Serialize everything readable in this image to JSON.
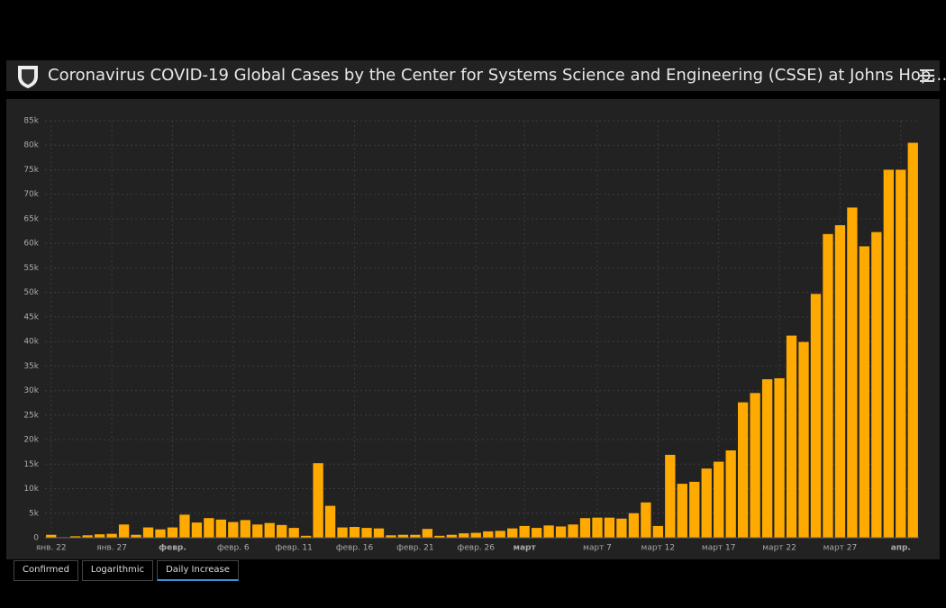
{
  "header": {
    "title": "Coronavirus COVID-19 Global Cases by the Center for Systems Science and Engineering (CSSE) at Johns Hop…"
  },
  "tabs": [
    "Confirmed",
    "Logarithmic",
    "Daily Increase"
  ],
  "chart_data": {
    "type": "bar",
    "color": "#ffaa00",
    "grid": true,
    "categories": [
      "янв. 22",
      null,
      null,
      null,
      null,
      "янв. 27",
      null,
      null,
      null,
      null,
      "февр.",
      null,
      null,
      null,
      null,
      "февр. 6",
      null,
      null,
      null,
      null,
      "февр. 11",
      null,
      null,
      null,
      null,
      "февр. 16",
      null,
      null,
      null,
      null,
      "февр. 21",
      null,
      null,
      null,
      null,
      "февр. 26",
      null,
      null,
      null,
      "март",
      null,
      null,
      null,
      null,
      null,
      "март 7",
      null,
      null,
      null,
      null,
      "март 12",
      null,
      null,
      null,
      null,
      "март 17",
      null,
      null,
      null,
      null,
      "март 22",
      null,
      null,
      null,
      null,
      "март 27",
      null,
      null,
      null,
      null,
      "апр.",
      null
    ],
    "values": [
      600,
      100,
      300,
      500,
      700,
      800,
      2700,
      600,
      2100,
      1700,
      2100,
      4700,
      3100,
      4000,
      3700,
      3200,
      3600,
      2700,
      3000,
      2600,
      2000,
      400,
      15200,
      6500,
      2100,
      2200,
      2000,
      1900,
      500,
      600,
      600,
      1800,
      400,
      600,
      900,
      1000,
      1300,
      1400,
      1900,
      2400,
      2000,
      2500,
      2300,
      2700,
      4000,
      4100,
      4100,
      3900,
      5000,
      7200,
      2400,
      16900,
      11000,
      11400,
      14100,
      15500,
      17800,
      27600,
      29500,
      32300,
      32500,
      41200,
      39900,
      49700,
      61900,
      63700,
      67300,
      59400,
      62300,
      75000,
      75000,
      80500
    ],
    "ylim": [
      0,
      85000
    ],
    "yticks": [
      0,
      {
        "value": 5000,
        "label": "5k"
      },
      {
        "value": 10000,
        "label": "10k"
      },
      {
        "value": 15000,
        "label": "15k"
      },
      {
        "value": 20000,
        "label": "20k"
      },
      {
        "value": 25000,
        "label": "25k"
      },
      {
        "value": 30000,
        "label": "30k"
      },
      {
        "value": 35000,
        "label": "35k"
      },
      {
        "value": 40000,
        "label": "40k"
      },
      {
        "value": 45000,
        "label": "45k"
      },
      {
        "value": 50000,
        "label": "50k"
      },
      {
        "value": 55000,
        "label": "55k"
      },
      {
        "value": 60000,
        "label": "60k"
      },
      {
        "value": 65000,
        "label": "65k"
      },
      {
        "value": 70000,
        "label": "70k"
      },
      {
        "value": 75000,
        "label": "75k"
      },
      {
        "value": 80000,
        "label": "80k"
      },
      {
        "value": 85000,
        "label": "85k"
      }
    ]
  }
}
